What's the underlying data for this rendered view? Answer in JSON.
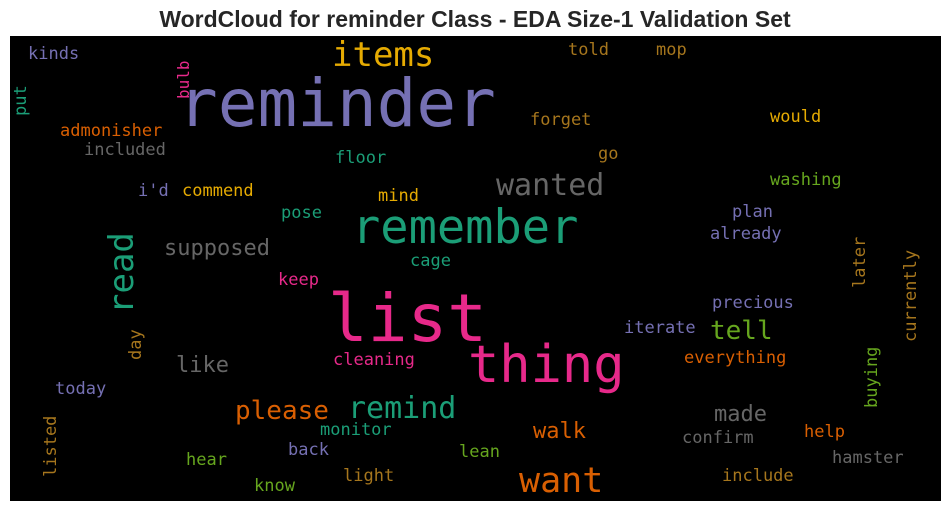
{
  "title": "WordCloud for reminder Class - EDA Size-1 Validation Set",
  "colors": {
    "purple": "#7570b3",
    "teal": "#1b9e77",
    "magenta": "#e7298a",
    "orange": "#d95f02",
    "gold": "#e6ab02",
    "green": "#66a61e",
    "brown": "#a6761d",
    "gray": "#666666"
  },
  "words": [
    "reminder",
    "list",
    "remember",
    "thing",
    "want",
    "items",
    "wanted",
    "read",
    "remind",
    "please",
    "tell",
    "walk",
    "supposed",
    "like",
    "made",
    "kinds",
    "bulb",
    "put",
    "told",
    "mop",
    "admonisher",
    "included",
    "forget",
    "would",
    "floor",
    "go",
    "i'd",
    "commend",
    "mind",
    "washing",
    "pose",
    "plan",
    "already",
    "cage",
    "keep",
    "later",
    "currently",
    "precious",
    "iterate",
    "day",
    "cleaning",
    "everything",
    "today",
    "buying",
    "listed",
    "monitor",
    "confirm",
    "help",
    "hear",
    "back",
    "lean",
    "hamster",
    "light",
    "include",
    "know"
  ]
}
